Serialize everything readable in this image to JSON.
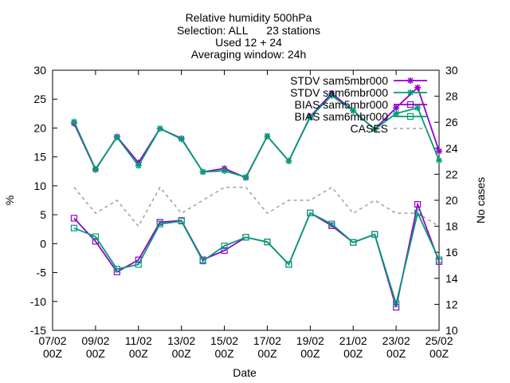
{
  "chart_data": {
    "type": "line",
    "title_lines": [
      "Relative humidity 500hPa",
      "Selection: ALL      23 stations",
      "Used 12 + 24",
      "Averaging window: 24h"
    ],
    "xlabel": "Date",
    "ylabel_left": "%",
    "ylabel_right": "No cases",
    "ylim_left": [
      -15,
      30
    ],
    "ylim_right": [
      10,
      30
    ],
    "yticks_left": [
      "-15",
      "-10",
      "-5",
      "0",
      "5",
      "10",
      "15",
      "20",
      "25",
      "30"
    ],
    "yticks_right": [
      "10",
      "12",
      "14",
      "16",
      "18",
      "20",
      "22",
      "24",
      "26",
      "28",
      "30"
    ],
    "xlim_days": [
      7,
      25
    ],
    "xticks": [
      {
        "day": 7,
        "line1": "07/02",
        "line2": "00Z"
      },
      {
        "day": 9,
        "line1": "09/02",
        "line2": "00Z"
      },
      {
        "day": 11,
        "line1": "11/02",
        "line2": "00Z"
      },
      {
        "day": 13,
        "line1": "13/02",
        "line2": "00Z"
      },
      {
        "day": 15,
        "line1": "15/02",
        "line2": "00Z"
      },
      {
        "day": 17,
        "line1": "17/02",
        "line2": "00Z"
      },
      {
        "day": 19,
        "line1": "19/02",
        "line2": "00Z"
      },
      {
        "day": 21,
        "line1": "21/02",
        "line2": "00Z"
      },
      {
        "day": 23,
        "line1": "23/02",
        "line2": "00Z"
      },
      {
        "day": 25,
        "line1": "25/02",
        "line2": "00Z"
      }
    ],
    "x": [
      8,
      9,
      10,
      11,
      12,
      13,
      14,
      15,
      16,
      17,
      18,
      19,
      20,
      21,
      22,
      23,
      24,
      25
    ],
    "grid": false,
    "legend_position": "top-right",
    "series": [
      {
        "name": "STDV sam5mbr000",
        "axis": "left",
        "color": "#9400d3",
        "marker": "star",
        "dash": false,
        "values": [
          20.8,
          12.8,
          18.5,
          14.0,
          19.9,
          18.2,
          12.4,
          13.0,
          11.4,
          18.6,
          14.3,
          22.0,
          26.0,
          23.0,
          19.8,
          23.5,
          27.0,
          16.0
        ]
      },
      {
        "name": "STDV sam6mbr000",
        "axis": "left",
        "color": "#009e73",
        "marker": "star",
        "dash": false,
        "values": [
          21.1,
          12.9,
          18.4,
          13.5,
          19.9,
          18.1,
          12.4,
          12.6,
          11.5,
          18.6,
          14.3,
          21.9,
          25.6,
          23.0,
          19.8,
          22.5,
          23.5,
          14.4
        ]
      },
      {
        "name": "BIAS sam5mbr000",
        "axis": "left",
        "color": "#9400d3",
        "marker": "square",
        "dash": false,
        "values": [
          4.4,
          0.4,
          -4.9,
          -2.8,
          3.7,
          4.0,
          -2.8,
          -1.2,
          1.1,
          0.3,
          -3.6,
          5.3,
          3.1,
          0.2,
          1.6,
          -11.0,
          6.8,
          -3.1
        ]
      },
      {
        "name": "BIAS sam6mbr000",
        "axis": "left",
        "color": "#009e73",
        "marker": "square",
        "dash": false,
        "values": [
          2.7,
          1.2,
          -4.4,
          -3.6,
          3.4,
          3.9,
          -3.0,
          -0.4,
          1.1,
          0.3,
          -3.6,
          5.3,
          3.4,
          0.2,
          1.6,
          -10.4,
          5.3,
          -2.8
        ]
      },
      {
        "name": "CASES",
        "axis": "right",
        "color": "#a0a0a0",
        "marker": "none",
        "dash": true,
        "values": [
          21,
          19,
          20,
          18,
          21,
          19,
          20,
          21,
          21,
          19,
          20,
          20,
          21,
          19,
          20,
          19,
          19,
          18
        ]
      }
    ]
  }
}
